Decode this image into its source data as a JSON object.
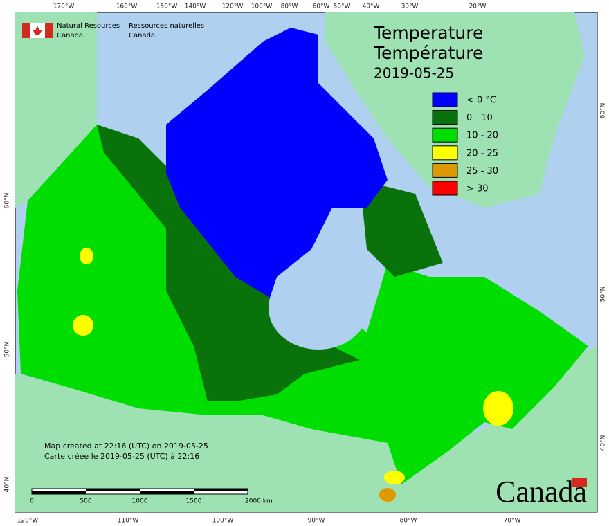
{
  "header": {
    "agency_en": [
      "Natural Resources",
      "Canada"
    ],
    "agency_fr": [
      "Ressources naturelles",
      "Canada"
    ]
  },
  "title": [
    "Temperature",
    "Température",
    "2019-05-25"
  ],
  "legend": [
    {
      "label": "< 0 °C",
      "color": "#0000ff"
    },
    {
      "label": "0 - 10",
      "color": "#0a720a"
    },
    {
      "label": "10 - 20",
      "color": "#00dd00"
    },
    {
      "label": "20 - 25",
      "color": "#ffff00"
    },
    {
      "label": "25 - 30",
      "color": "#dd9900"
    },
    {
      "label": "> 30",
      "color": "#ff0000"
    }
  ],
  "graticule": {
    "top": [
      "170°W",
      "160°W",
      "150°W",
      "140°W",
      "120°W",
      "100°W",
      "80°W",
      "60°W",
      "50°W",
      "40°W",
      "30°W",
      "20°W"
    ],
    "bottom": [
      "120°W",
      "110°W",
      "100°W",
      "90°W",
      "80°W",
      "70°W"
    ],
    "left": [
      "60°N",
      "50°N",
      "40°N"
    ],
    "right": [
      "60°N",
      "50°N",
      "40°N"
    ]
  },
  "footer": [
    "Map created at 22:16 (UTC) on 2019-05-25",
    "Carte créée le 2019-05-25 (UTC) à 22:16"
  ],
  "scale_bar": {
    "labels": [
      "0",
      "500",
      "1000",
      "1500",
      "2000 km"
    ]
  },
  "wordmark": "Canada"
}
